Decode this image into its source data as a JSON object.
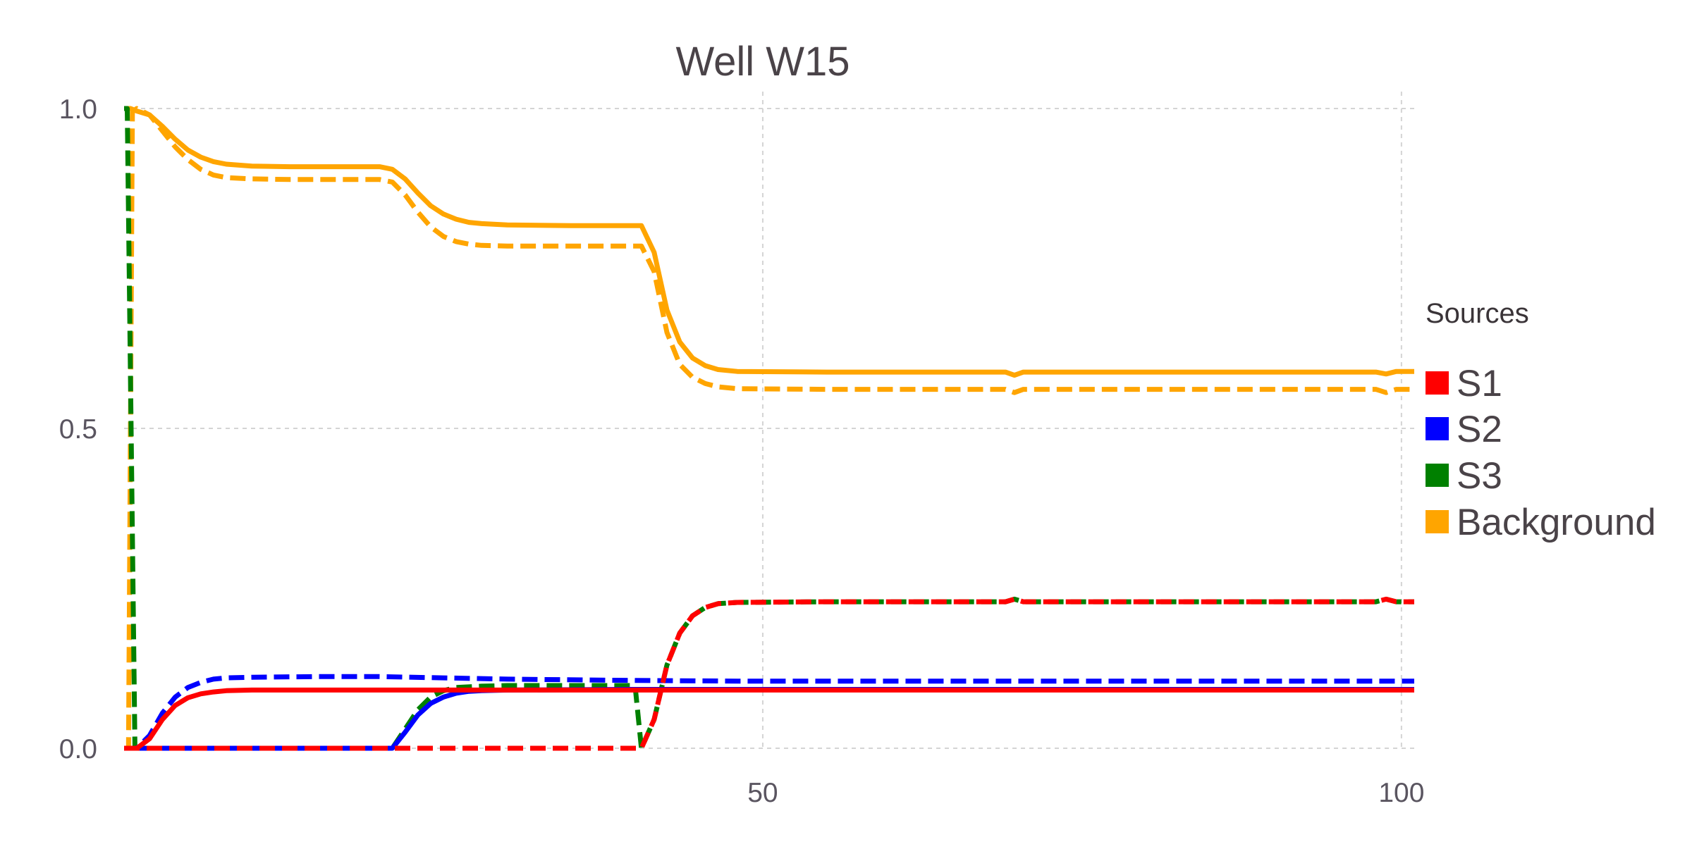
{
  "chart_data": {
    "type": "line",
    "title": "Well W15",
    "xlabel": "",
    "ylabel": "",
    "xlim": [
      0,
      101
    ],
    "ylim": [
      0,
      1.0
    ],
    "xticks": [
      50,
      100
    ],
    "xtick_labels": [
      "50",
      "100"
    ],
    "yticks": [
      0.0,
      0.5,
      1.0
    ],
    "ytick_labels": [
      "0.0",
      "0.5",
      "1.0"
    ],
    "grid": true,
    "legend": {
      "title": "Sources",
      "placement": "right",
      "entries": [
        {
          "label": "S1",
          "color": "#ff0000"
        },
        {
          "label": "S2",
          "color": "#0000ff"
        },
        {
          "label": "S3",
          "color": "#008000"
        },
        {
          "label": "Background",
          "color": "#ffa500"
        }
      ]
    },
    "series": [
      {
        "source": "Background",
        "color": "#ffa500",
        "style": "solid",
        "points": [
          [
            0,
            1.0
          ],
          [
            0.5,
            1.0
          ],
          [
            1,
            0.996
          ],
          [
            2,
            0.99
          ],
          [
            3,
            0.972
          ],
          [
            4,
            0.952
          ],
          [
            5,
            0.935
          ],
          [
            6,
            0.924
          ],
          [
            7,
            0.917
          ],
          [
            8,
            0.913
          ],
          [
            10,
            0.91
          ],
          [
            13,
            0.909
          ],
          [
            16,
            0.909
          ],
          [
            19,
            0.909
          ],
          [
            20,
            0.909
          ],
          [
            21,
            0.905
          ],
          [
            22,
            0.89
          ],
          [
            23,
            0.868
          ],
          [
            24,
            0.848
          ],
          [
            25,
            0.835
          ],
          [
            26,
            0.827
          ],
          [
            27,
            0.822
          ],
          [
            28,
            0.82
          ],
          [
            30,
            0.818
          ],
          [
            35,
            0.817
          ],
          [
            40,
            0.817
          ],
          [
            40.5,
            0.817
          ],
          [
            41.5,
            0.775
          ],
          [
            42.5,
            0.685
          ],
          [
            43.5,
            0.635
          ],
          [
            44.5,
            0.61
          ],
          [
            45.5,
            0.598
          ],
          [
            46.5,
            0.592
          ],
          [
            48,
            0.589
          ],
          [
            55,
            0.588
          ],
          [
            69,
            0.588
          ],
          [
            69.7,
            0.583
          ],
          [
            70.4,
            0.588
          ],
          [
            98,
            0.588
          ],
          [
            98.8,
            0.585
          ],
          [
            99.6,
            0.589
          ],
          [
            101,
            0.589
          ]
        ]
      },
      {
        "source": "Background",
        "color": "#ffa500",
        "style": "dashed",
        "points": [
          [
            0,
            0.0
          ],
          [
            0.35,
            0.0
          ],
          [
            0.65,
            0.995
          ],
          [
            1,
            1.0
          ],
          [
            2,
            0.99
          ],
          [
            3,
            0.965
          ],
          [
            4,
            0.94
          ],
          [
            5,
            0.92
          ],
          [
            6,
            0.905
          ],
          [
            7,
            0.896
          ],
          [
            8,
            0.892
          ],
          [
            10,
            0.89
          ],
          [
            13,
            0.889
          ],
          [
            16,
            0.889
          ],
          [
            19,
            0.889
          ],
          [
            20,
            0.889
          ],
          [
            21,
            0.885
          ],
          [
            22,
            0.865
          ],
          [
            23,
            0.838
          ],
          [
            24,
            0.815
          ],
          [
            25,
            0.8
          ],
          [
            26,
            0.792
          ],
          [
            27,
            0.788
          ],
          [
            28,
            0.786
          ],
          [
            30,
            0.785
          ],
          [
            35,
            0.785
          ],
          [
            40,
            0.785
          ],
          [
            40.5,
            0.785
          ],
          [
            41.5,
            0.745
          ],
          [
            42.5,
            0.65
          ],
          [
            43.5,
            0.6
          ],
          [
            44.5,
            0.58
          ],
          [
            45.5,
            0.57
          ],
          [
            46.5,
            0.565
          ],
          [
            48,
            0.562
          ],
          [
            55,
            0.561
          ],
          [
            69,
            0.561
          ],
          [
            69.7,
            0.556
          ],
          [
            70.4,
            0.561
          ],
          [
            98,
            0.561
          ],
          [
            98.8,
            0.556
          ],
          [
            99.6,
            0.561
          ],
          [
            101,
            0.561
          ]
        ]
      },
      {
        "source": "S3",
        "color": "#008000",
        "style": "dashed",
        "points": [
          [
            0,
            1.0
          ],
          [
            0.25,
            1.0
          ],
          [
            0.85,
            0.0
          ],
          [
            21,
            0.0
          ],
          [
            22,
            0.03
          ],
          [
            23,
            0.06
          ],
          [
            24,
            0.08
          ],
          [
            25,
            0.09
          ],
          [
            26,
            0.095
          ],
          [
            28,
            0.097
          ],
          [
            30,
            0.098
          ],
          [
            40,
            0.098
          ],
          [
            40.5,
            0.0
          ],
          [
            41.5,
            0.045
          ],
          [
            42.5,
            0.13
          ],
          [
            43.5,
            0.18
          ],
          [
            44.5,
            0.207
          ],
          [
            45.5,
            0.22
          ],
          [
            46.5,
            0.226
          ],
          [
            48,
            0.228
          ],
          [
            55,
            0.229
          ],
          [
            69,
            0.229
          ],
          [
            69.7,
            0.233
          ],
          [
            70.4,
            0.229
          ],
          [
            98,
            0.229
          ],
          [
            98.8,
            0.233
          ],
          [
            99.6,
            0.229
          ],
          [
            101,
            0.229
          ]
        ]
      },
      {
        "source": "S2",
        "color": "#0000ff",
        "style": "dashed",
        "points": [
          [
            0,
            0.0
          ],
          [
            1,
            0.0
          ],
          [
            2,
            0.02
          ],
          [
            3,
            0.055
          ],
          [
            4,
            0.08
          ],
          [
            5,
            0.095
          ],
          [
            6,
            0.103
          ],
          [
            7,
            0.108
          ],
          [
            8,
            0.11
          ],
          [
            10,
            0.111
          ],
          [
            15,
            0.112
          ],
          [
            20,
            0.112
          ],
          [
            25,
            0.11
          ],
          [
            30,
            0.108
          ],
          [
            40,
            0.106
          ],
          [
            48,
            0.105
          ],
          [
            60,
            0.105
          ],
          [
            70,
            0.105
          ],
          [
            80,
            0.105
          ],
          [
            90,
            0.105
          ],
          [
            101,
            0.105
          ]
        ]
      },
      {
        "source": "S2",
        "color": "#0000ff",
        "style": "solid",
        "points": [
          [
            0,
            0.0
          ],
          [
            21,
            0.0
          ],
          [
            22,
            0.025
          ],
          [
            23,
            0.052
          ],
          [
            24,
            0.07
          ],
          [
            25,
            0.08
          ],
          [
            26,
            0.086
          ],
          [
            27,
            0.089
          ],
          [
            28,
            0.09
          ],
          [
            30,
            0.091
          ],
          [
            40,
            0.092
          ],
          [
            55,
            0.092
          ],
          [
            70,
            0.092
          ],
          [
            85,
            0.092
          ],
          [
            101,
            0.092
          ]
        ]
      },
      {
        "source": "S1",
        "color": "#ff0000",
        "style": "solid",
        "points": [
          [
            0,
            0.0
          ],
          [
            1,
            0.0
          ],
          [
            2,
            0.015
          ],
          [
            3,
            0.045
          ],
          [
            4,
            0.067
          ],
          [
            5,
            0.079
          ],
          [
            6,
            0.085
          ],
          [
            7,
            0.088
          ],
          [
            8,
            0.09
          ],
          [
            10,
            0.091
          ],
          [
            15,
            0.091
          ],
          [
            20,
            0.091
          ],
          [
            30,
            0.091
          ],
          [
            40,
            0.091
          ],
          [
            55,
            0.091
          ],
          [
            70,
            0.091
          ],
          [
            85,
            0.091
          ],
          [
            101,
            0.091
          ]
        ]
      },
      {
        "source": "S1",
        "color": "#ff0000",
        "style": "dashed",
        "points": [
          [
            0,
            0.0
          ],
          [
            40.5,
            0.0
          ],
          [
            41.5,
            0.045
          ],
          [
            42.5,
            0.13
          ],
          [
            43.5,
            0.18
          ],
          [
            44.5,
            0.207
          ],
          [
            45.5,
            0.22
          ],
          [
            46.5,
            0.226
          ],
          [
            48,
            0.228
          ],
          [
            55,
            0.229
          ],
          [
            69,
            0.229
          ],
          [
            69.7,
            0.233
          ],
          [
            70.4,
            0.229
          ],
          [
            98,
            0.229
          ],
          [
            98.8,
            0.233
          ],
          [
            99.6,
            0.229
          ],
          [
            101,
            0.229
          ]
        ]
      }
    ]
  }
}
